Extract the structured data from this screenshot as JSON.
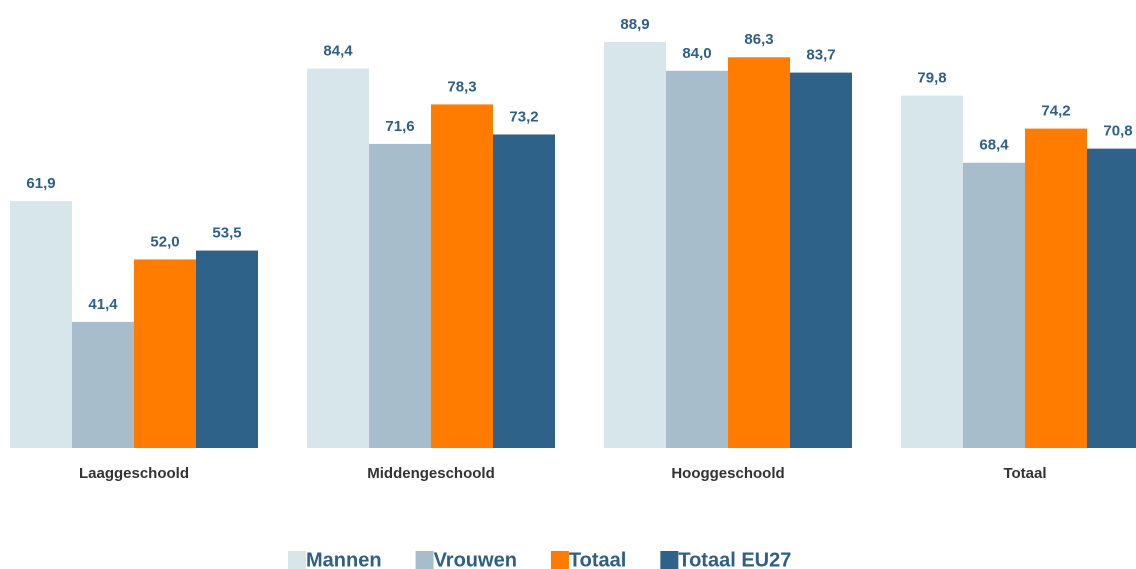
{
  "chart_data": {
    "type": "bar",
    "categories": [
      "Laaggeschoold",
      "Middengeschoold",
      "Hooggeschoold",
      "Totaal"
    ],
    "series": [
      {
        "name": "Mannen",
        "color": "#d6e6ea",
        "values": [
          61.9,
          84.4,
          88.9,
          79.8
        ],
        "value_labels": [
          "61,9",
          "84,4",
          "88,9",
          "79,8"
        ]
      },
      {
        "name": "Vrouwen",
        "color": "#a7bdcc",
        "values": [
          41.4,
          71.6,
          84.0,
          68.4
        ],
        "value_labels": [
          "41,4",
          "71,6",
          "84,0",
          "68,4"
        ]
      },
      {
        "name": "Totaal",
        "color": "#ff7c00",
        "values": [
          52.0,
          78.3,
          86.3,
          74.2
        ],
        "value_labels": [
          "52,0",
          "78,3",
          "86,3",
          "74,2"
        ]
      },
      {
        "name": "Totaal EU27",
        "color": "#2e6289",
        "values": [
          53.5,
          73.2,
          83.7,
          70.8
        ],
        "value_labels": [
          "53,5",
          "73,2",
          "83,7",
          "70,8"
        ]
      }
    ],
    "ylim": [
      20,
      95
    ],
    "grid": false,
    "legend": "bottom"
  }
}
